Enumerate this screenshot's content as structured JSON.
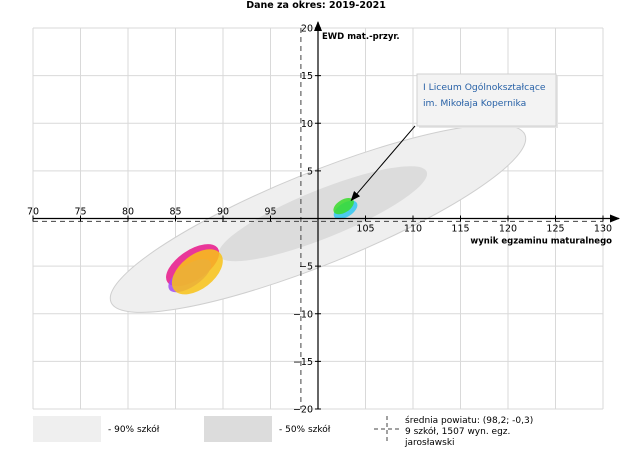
{
  "chart_data": {
    "type": "scatter",
    "title": "Dane za okres: 2019-2021",
    "xlabel": "wynik egzaminu maturalnego",
    "ylabel": "EWD mat.-przyr.",
    "xlim": [
      70,
      130
    ],
    "ylim": [
      -20,
      20
    ],
    "x_ticks": [
      70,
      75,
      80,
      85,
      90,
      95,
      105,
      110,
      115,
      120,
      125,
      130
    ],
    "y_ticks": [
      20,
      15,
      10,
      5,
      -5,
      -10,
      -15,
      -20
    ],
    "grid": true,
    "axis_origin": [
      100,
      0
    ],
    "reference_lines": {
      "x": 98.2,
      "y": -0.3
    },
    "bands": [
      {
        "name": "90% szkół",
        "cx": 100,
        "cy": 0,
        "rx": 23.5,
        "ry": 2.3,
        "angle_deg": -22,
        "color": "#efefef"
      },
      {
        "name": "50% szkół",
        "cx": 100.5,
        "cy": 0.5,
        "rx": 11.8,
        "ry": 1.2,
        "angle_deg": -22,
        "color": "#dcdcdc"
      }
    ],
    "series": [
      {
        "cx": 86.8,
        "cy": -4.9,
        "rx": 3.2,
        "ry": 0.75,
        "angle_deg": -34,
        "color": "#e8168a"
      },
      {
        "cx": 86.5,
        "cy": -6.0,
        "rx": 2.6,
        "ry": 0.55,
        "angle_deg": -34,
        "color": "#a24bf5"
      },
      {
        "cx": 87.3,
        "cy": -5.6,
        "rx": 3.1,
        "ry": 0.85,
        "angle_deg": -38,
        "color": "#f8c216"
      },
      {
        "cx": 102.9,
        "cy": 0.9,
        "rx": 1.4,
        "ry": 0.35,
        "angle_deg": -32,
        "color": "#31c8f2"
      },
      {
        "cx": 102.7,
        "cy": 1.3,
        "rx": 1.2,
        "ry": 0.32,
        "angle_deg": -32,
        "color": "#3adc2c"
      }
    ],
    "annotation": {
      "lines": [
        "I Liceum Ogólnokształcące",
        "im. Mikołaja Kopernika"
      ],
      "target": [
        103.5,
        1.9
      ],
      "color": "#2962a7"
    },
    "legend": {
      "band90": "- 90% szkół",
      "band50": "- 50% szkół",
      "lines": [
        "średnia powiatu: (98,2; -0,3)",
        "9 szkół, 1507 wyn. egz.",
        "jarosławski"
      ]
    }
  }
}
